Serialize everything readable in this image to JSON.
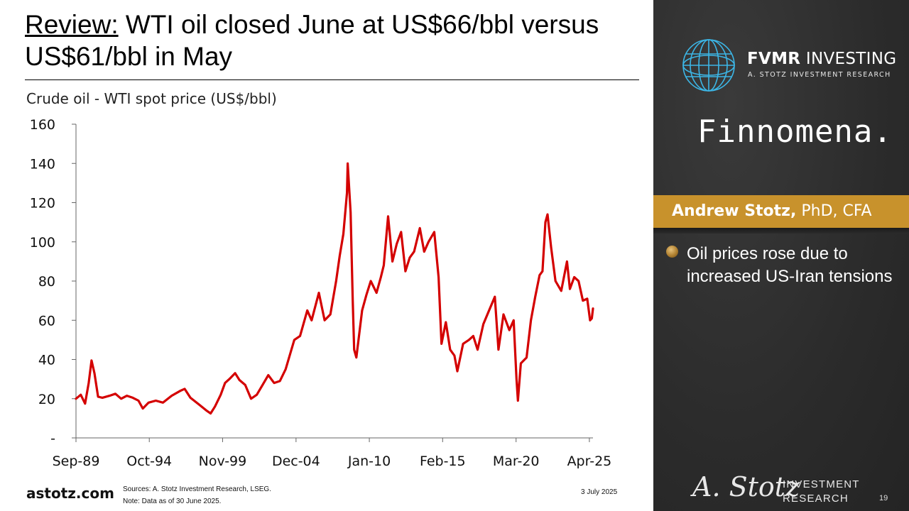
{
  "slide": {
    "title_lead": "Review:",
    "title_rest": " WTI oil closed June at US$66/bbl versus US$61/bbl in May",
    "brand": "astotz.com",
    "sources": "Sources: A. Stotz Investment Research, LSEG.",
    "note": "Note: Data as of 30 June 2025.",
    "date": "3 July 2025",
    "page_number": "19"
  },
  "panel": {
    "fvmr_bold": "FVMR",
    "fvmr_rest": " INVESTING",
    "fvmr_sub": "A. STOTZ INVESTMENT RESEARCH",
    "partner": "Finnomena.",
    "author_name": "Andrew Stotz,",
    "author_creds": " PhD, CFA",
    "bullet": "Oil prices rose due to increased US-Iran tensions",
    "signature": "A. Stotz",
    "ir_line1": "INVESTMENT",
    "ir_line2": "RESEARCH",
    "accent_color": "#c8922c",
    "bullet_icon": "gold-bullet-icon",
    "logo_icon": "globe-icon"
  },
  "chart_data": {
    "type": "line",
    "title": "Crude oil - WTI spot price (US$/bbl)",
    "series": [
      {
        "color": "#d40000",
        "points": [
          [
            1989.67,
            20
          ],
          [
            1990.0,
            22
          ],
          [
            1990.3,
            17.5
          ],
          [
            1990.55,
            28
          ],
          [
            1990.75,
            39.5
          ],
          [
            1990.95,
            33
          ],
          [
            1991.2,
            21
          ],
          [
            1991.5,
            20.5
          ],
          [
            1992.0,
            21.5
          ],
          [
            1992.4,
            22.5
          ],
          [
            1992.8,
            20
          ],
          [
            1993.2,
            21.5
          ],
          [
            1993.6,
            20.5
          ],
          [
            1994.0,
            19
          ],
          [
            1994.3,
            15
          ],
          [
            1994.7,
            18
          ],
          [
            1995.2,
            19
          ],
          [
            1995.7,
            18
          ],
          [
            1996.3,
            21.5
          ],
          [
            1996.9,
            24
          ],
          [
            1997.2,
            25
          ],
          [
            1997.6,
            20.5
          ],
          [
            1998.2,
            17
          ],
          [
            1998.7,
            14
          ],
          [
            1999.0,
            12.5
          ],
          [
            1999.3,
            16
          ],
          [
            1999.7,
            22
          ],
          [
            2000.0,
            28
          ],
          [
            2000.3,
            30
          ],
          [
            2000.7,
            33
          ],
          [
            2001.0,
            29.5
          ],
          [
            2001.4,
            27
          ],
          [
            2001.8,
            20
          ],
          [
            2002.2,
            22
          ],
          [
            2002.6,
            27
          ],
          [
            2003.0,
            32
          ],
          [
            2003.4,
            28
          ],
          [
            2003.8,
            29
          ],
          [
            2004.2,
            35
          ],
          [
            2004.8,
            50
          ],
          [
            2005.2,
            52
          ],
          [
            2005.7,
            65
          ],
          [
            2006.0,
            60
          ],
          [
            2006.5,
            74
          ],
          [
            2006.9,
            60
          ],
          [
            2007.3,
            63
          ],
          [
            2007.7,
            80
          ],
          [
            2007.95,
            93
          ],
          [
            2008.2,
            104
          ],
          [
            2008.45,
            125
          ],
          [
            2008.5,
            140
          ],
          [
            2008.7,
            115
          ],
          [
            2008.85,
            70
          ],
          [
            2008.95,
            45
          ],
          [
            2009.1,
            41
          ],
          [
            2009.5,
            65
          ],
          [
            2009.8,
            73
          ],
          [
            2010.1,
            80
          ],
          [
            2010.5,
            74
          ],
          [
            2010.8,
            82
          ],
          [
            2011.0,
            88
          ],
          [
            2011.3,
            113
          ],
          [
            2011.6,
            90
          ],
          [
            2011.9,
            99
          ],
          [
            2012.2,
            105
          ],
          [
            2012.5,
            85
          ],
          [
            2012.8,
            92
          ],
          [
            2013.1,
            95
          ],
          [
            2013.5,
            107
          ],
          [
            2013.8,
            95
          ],
          [
            2014.1,
            100
          ],
          [
            2014.5,
            105
          ],
          [
            2014.8,
            82
          ],
          [
            2015.0,
            48
          ],
          [
            2015.3,
            59
          ],
          [
            2015.6,
            45
          ],
          [
            2015.9,
            42
          ],
          [
            2016.1,
            34
          ],
          [
            2016.5,
            48
          ],
          [
            2016.9,
            50
          ],
          [
            2017.2,
            52
          ],
          [
            2017.5,
            45
          ],
          [
            2017.9,
            58
          ],
          [
            2018.3,
            65
          ],
          [
            2018.7,
            72
          ],
          [
            2018.95,
            45
          ],
          [
            2019.3,
            63
          ],
          [
            2019.7,
            55
          ],
          [
            2020.0,
            60
          ],
          [
            2020.2,
            30
          ],
          [
            2020.3,
            19
          ],
          [
            2020.5,
            38
          ],
          [
            2020.9,
            41
          ],
          [
            2021.2,
            60
          ],
          [
            2021.5,
            72
          ],
          [
            2021.8,
            83
          ],
          [
            2022.0,
            85
          ],
          [
            2022.2,
            110
          ],
          [
            2022.35,
            114
          ],
          [
            2022.6,
            97
          ],
          [
            2022.9,
            80
          ],
          [
            2023.3,
            75
          ],
          [
            2023.7,
            90
          ],
          [
            2023.9,
            76
          ],
          [
            2024.2,
            82
          ],
          [
            2024.5,
            80
          ],
          [
            2024.8,
            70
          ],
          [
            2025.1,
            71
          ],
          [
            2025.3,
            60
          ],
          [
            2025.42,
            61
          ],
          [
            2025.5,
            66
          ]
        ]
      }
    ],
    "xlim": [
      1989.67,
      2025.5
    ],
    "ylim": [
      0,
      160
    ],
    "yticks": [
      0,
      20,
      40,
      60,
      80,
      100,
      120,
      140,
      160
    ],
    "ytick_labels": [
      "-",
      "20",
      "40",
      "60",
      "80",
      "100",
      "120",
      "140",
      "160"
    ],
    "xticks": [
      1989.67,
      1994.75,
      1999.83,
      2004.92,
      2010.0,
      2015.08,
      2020.17,
      2025.25
    ],
    "xtick_labels": [
      "Sep-89",
      "Oct-94",
      "Nov-99",
      "Dec-04",
      "Jan-10",
      "Feb-15",
      "Mar-20",
      "Apr-25"
    ],
    "grid": false
  }
}
